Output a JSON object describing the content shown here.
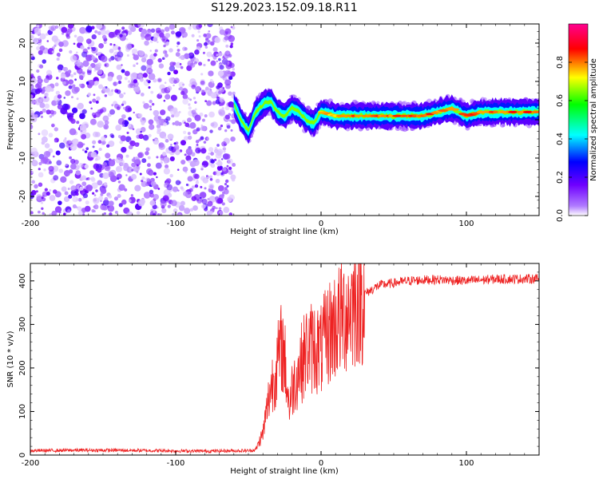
{
  "title": "S129.2023.152.09.18.R11",
  "chart_data": [
    {
      "type": "heatmap",
      "xlabel": "Height of straight line (km)",
      "ylabel": "Frequency (Hz)",
      "xlim": [
        -200,
        150
      ],
      "ylim": [
        -25,
        25
      ],
      "xticks": [
        -200,
        -100,
        0,
        100
      ],
      "yticks": [
        -20,
        -10,
        0,
        10,
        20
      ],
      "colorbar": {
        "label": "Normalized spectral amplitude",
        "range": [
          0,
          1
        ],
        "ticks": [
          "0.0",
          "0.2",
          "0.4",
          "0.6",
          "0.8"
        ],
        "colors": [
          "#ffffff",
          "#7b00ff",
          "#0000ff",
          "#00ffff",
          "#00ff00",
          "#ffff00",
          "#ff0000",
          "#ff00aa"
        ]
      },
      "noise_region_x": [
        -200,
        -60
      ],
      "ridge": {
        "x": [
          -60,
          -55,
          -50,
          -45,
          -40,
          -35,
          -30,
          -25,
          -20,
          -15,
          -10,
          -5,
          0,
          10,
          30,
          50,
          70,
          80,
          90,
          100,
          110,
          130,
          150
        ],
        "y": [
          4,
          0,
          -3,
          2,
          4,
          5,
          2,
          1,
          3,
          2,
          0,
          -1,
          2,
          1,
          1,
          1,
          1,
          2,
          3,
          1,
          2,
          2,
          2
        ],
        "amplitude": [
          0.35,
          0.4,
          0.3,
          0.45,
          0.5,
          0.6,
          0.55,
          0.6,
          0.6,
          0.65,
          0.7,
          0.7,
          0.7,
          0.75,
          0.8,
          0.8,
          0.8,
          0.8,
          0.75,
          0.8,
          0.8,
          0.8,
          0.8
        ]
      }
    },
    {
      "type": "line",
      "xlabel": "Height of straight line (km)",
      "ylabel": "SNR (10 * v/v)",
      "xlim": [
        -200,
        150
      ],
      "ylim": [
        0,
        440
      ],
      "xticks": [
        -200,
        -100,
        0,
        100
      ],
      "yticks": [
        0,
        100,
        200,
        300,
        400
      ],
      "color": "#ee2222",
      "series": [
        {
          "x": [
            -200,
            -170,
            -140,
            -110,
            -80,
            -60,
            -50,
            -45,
            -40,
            -35,
            -30,
            -27,
            -25,
            -22,
            -20,
            -15,
            -10,
            -5,
            0,
            5,
            10,
            15,
            20,
            25,
            30,
            35,
            40,
            50,
            60,
            70,
            80,
            100,
            120,
            150
          ],
          "y": [
            10,
            11,
            11,
            10,
            9,
            10,
            10,
            12,
            50,
            150,
            210,
            250,
            220,
            110,
            150,
            200,
            240,
            250,
            240,
            280,
            300,
            320,
            340,
            360,
            370,
            380,
            390,
            395,
            400,
            402,
            403,
            400,
            404,
            405
          ]
        }
      ]
    }
  ]
}
